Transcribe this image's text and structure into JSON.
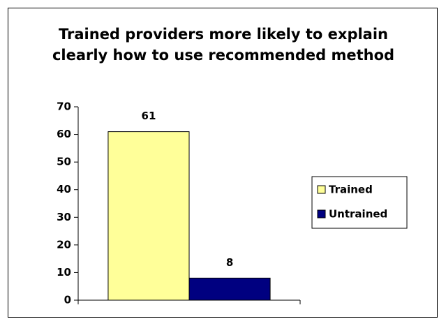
{
  "chart_data": {
    "type": "bar",
    "title": "Trained providers more likely to explain clearly how to use recommended method",
    "categories": [
      null
    ],
    "series": [
      {
        "name": "Trained",
        "color": "#ffff99",
        "values": [
          61
        ]
      },
      {
        "name": "Untrained",
        "color": "#000080",
        "values": [
          8
        ]
      }
    ],
    "ylim": [
      0,
      70
    ],
    "yticks": [
      0,
      10,
      20,
      30,
      40,
      50,
      60,
      70
    ],
    "legend": "right"
  }
}
